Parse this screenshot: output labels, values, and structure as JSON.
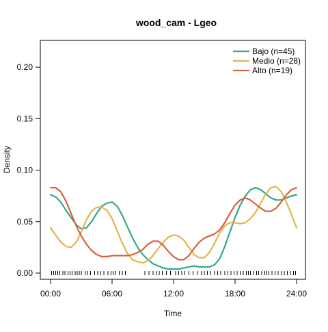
{
  "chart_data": {
    "type": "line",
    "title": "wood_cam - Lgeo",
    "xlabel": "Time",
    "ylabel": "Density",
    "xlim": [
      0,
      24
    ],
    "ylim": [
      -0.006,
      0.226
    ],
    "x_ticks": [
      {
        "value": 0,
        "label": "00:00"
      },
      {
        "value": 6,
        "label": "06:00"
      },
      {
        "value": 12,
        "label": "12:00"
      },
      {
        "value": 18,
        "label": "18:00"
      },
      {
        "value": 24,
        "label": "24:00"
      }
    ],
    "y_ticks": [
      {
        "value": 0.0,
        "label": "0.00"
      },
      {
        "value": 0.05,
        "label": "0.05"
      },
      {
        "value": 0.1,
        "label": "0.10"
      },
      {
        "value": 0.15,
        "label": "0.15"
      },
      {
        "value": 0.2,
        "label": "0.20"
      }
    ],
    "legend_position": "top-right",
    "grid": false,
    "series": [
      {
        "name": "Bajo (n=45)",
        "color": "#2eaa8a",
        "points": [
          [
            0,
            0.076
          ],
          [
            0.5,
            0.074
          ],
          [
            1,
            0.069
          ],
          [
            1.5,
            0.061
          ],
          [
            2,
            0.054
          ],
          [
            2.5,
            0.047
          ],
          [
            3,
            0.043
          ],
          [
            3.5,
            0.044
          ],
          [
            4,
            0.05
          ],
          [
            4.5,
            0.058
          ],
          [
            5,
            0.065
          ],
          [
            5.5,
            0.068
          ],
          [
            6,
            0.069
          ],
          [
            6.5,
            0.065
          ],
          [
            7,
            0.056
          ],
          [
            7.5,
            0.045
          ],
          [
            8,
            0.034
          ],
          [
            8.5,
            0.025
          ],
          [
            9,
            0.018
          ],
          [
            9.5,
            0.013
          ],
          [
            10,
            0.009
          ],
          [
            10.5,
            0.007
          ],
          [
            11,
            0.005
          ],
          [
            11.5,
            0.004
          ],
          [
            12,
            0.004
          ],
          [
            12.5,
            0.004
          ],
          [
            13,
            0.005
          ],
          [
            13.5,
            0.006
          ],
          [
            14,
            0.007
          ],
          [
            14.5,
            0.006
          ],
          [
            15,
            0.006
          ],
          [
            15.5,
            0.006
          ],
          [
            16,
            0.008
          ],
          [
            16.5,
            0.014
          ],
          [
            17,
            0.026
          ],
          [
            17.5,
            0.04
          ],
          [
            18,
            0.054
          ],
          [
            18.5,
            0.066
          ],
          [
            19,
            0.075
          ],
          [
            19.5,
            0.081
          ],
          [
            20,
            0.083
          ],
          [
            20.5,
            0.081
          ],
          [
            21,
            0.077
          ],
          [
            21.5,
            0.073
          ],
          [
            22,
            0.071
          ],
          [
            22.5,
            0.071
          ],
          [
            23,
            0.073
          ],
          [
            23.5,
            0.075
          ],
          [
            24,
            0.076
          ]
        ]
      },
      {
        "name": "Medio (n=28)",
        "color": "#e2b54a",
        "points": [
          [
            0,
            0.044
          ],
          [
            0.5,
            0.037
          ],
          [
            1,
            0.03
          ],
          [
            1.5,
            0.026
          ],
          [
            2,
            0.025
          ],
          [
            2.5,
            0.03
          ],
          [
            3,
            0.04
          ],
          [
            3.5,
            0.052
          ],
          [
            4,
            0.06
          ],
          [
            4.5,
            0.064
          ],
          [
            5,
            0.064
          ],
          [
            5.5,
            0.061
          ],
          [
            6,
            0.053
          ],
          [
            6.5,
            0.041
          ],
          [
            7,
            0.029
          ],
          [
            7.5,
            0.019
          ],
          [
            8,
            0.013
          ],
          [
            8.5,
            0.011
          ],
          [
            9,
            0.01
          ],
          [
            9.5,
            0.012
          ],
          [
            10,
            0.017
          ],
          [
            10.5,
            0.024
          ],
          [
            11,
            0.03
          ],
          [
            11.5,
            0.035
          ],
          [
            12,
            0.037
          ],
          [
            12.5,
            0.036
          ],
          [
            13,
            0.032
          ],
          [
            13.5,
            0.025
          ],
          [
            14,
            0.018
          ],
          [
            14.5,
            0.015
          ],
          [
            15,
            0.015
          ],
          [
            15.5,
            0.02
          ],
          [
            16,
            0.029
          ],
          [
            16.5,
            0.039
          ],
          [
            17,
            0.046
          ],
          [
            17.5,
            0.049
          ],
          [
            18,
            0.049
          ],
          [
            18.5,
            0.048
          ],
          [
            19,
            0.049
          ],
          [
            19.5,
            0.053
          ],
          [
            20,
            0.059
          ],
          [
            20.5,
            0.068
          ],
          [
            21,
            0.077
          ],
          [
            21.5,
            0.083
          ],
          [
            22,
            0.084
          ],
          [
            22.5,
            0.079
          ],
          [
            23,
            0.069
          ],
          [
            23.5,
            0.057
          ],
          [
            24,
            0.044
          ]
        ]
      },
      {
        "name": "Alto (n=19)",
        "color": "#d95f3c",
        "points": [
          [
            0,
            0.083
          ],
          [
            0.5,
            0.083
          ],
          [
            1,
            0.079
          ],
          [
            1.5,
            0.07
          ],
          [
            2,
            0.058
          ],
          [
            2.5,
            0.046
          ],
          [
            3,
            0.036
          ],
          [
            3.5,
            0.028
          ],
          [
            4,
            0.022
          ],
          [
            4.5,
            0.018
          ],
          [
            5,
            0.016
          ],
          [
            5.5,
            0.016
          ],
          [
            6,
            0.017
          ],
          [
            6.5,
            0.017
          ],
          [
            7,
            0.017
          ],
          [
            7.5,
            0.017
          ],
          [
            8,
            0.018
          ],
          [
            8.5,
            0.02
          ],
          [
            9,
            0.023
          ],
          [
            9.5,
            0.028
          ],
          [
            10,
            0.031
          ],
          [
            10.5,
            0.031
          ],
          [
            11,
            0.027
          ],
          [
            11.5,
            0.021
          ],
          [
            12,
            0.016
          ],
          [
            12.5,
            0.013
          ],
          [
            13,
            0.013
          ],
          [
            13.5,
            0.017
          ],
          [
            14,
            0.024
          ],
          [
            14.5,
            0.03
          ],
          [
            15,
            0.034
          ],
          [
            15.5,
            0.036
          ],
          [
            16,
            0.038
          ],
          [
            16.5,
            0.042
          ],
          [
            17,
            0.049
          ],
          [
            17.5,
            0.058
          ],
          [
            18,
            0.066
          ],
          [
            18.5,
            0.071
          ],
          [
            19,
            0.073
          ],
          [
            19.5,
            0.071
          ],
          [
            20,
            0.067
          ],
          [
            20.5,
            0.063
          ],
          [
            21,
            0.06
          ],
          [
            21.5,
            0.06
          ],
          [
            22,
            0.063
          ],
          [
            22.5,
            0.069
          ],
          [
            23,
            0.076
          ],
          [
            23.5,
            0.081
          ],
          [
            24,
            0.083
          ]
        ]
      }
    ],
    "rug": [
      0.1,
      0.3,
      0.5,
      0.7,
      0.9,
      1.2,
      1.4,
      1.7,
      1.9,
      2.1,
      2.4,
      2.6,
      2.8,
      3.0,
      3.4,
      3.6,
      3.9,
      4.3,
      4.6,
      4.9,
      5.2,
      5.6,
      5.9,
      6.1,
      6.3,
      6.7,
      7.0,
      7.3,
      9.2,
      9.6,
      10.0,
      10.3,
      10.6,
      10.9,
      11.3,
      11.7,
      12.2,
      12.5,
      12.8,
      13.1,
      13.5,
      13.9,
      14.3,
      14.7,
      15.0,
      15.3,
      15.6,
      16.0,
      16.3,
      16.6,
      17.0,
      17.3,
      17.6,
      17.9,
      18.2,
      18.5,
      18.8,
      19.1,
      19.3,
      19.5,
      19.8,
      20.1,
      20.3,
      20.6,
      20.9,
      21.1,
      21.3,
      21.6,
      21.9,
      22.2,
      22.5,
      22.8,
      23.1,
      23.4,
      23.7,
      23.9
    ]
  }
}
